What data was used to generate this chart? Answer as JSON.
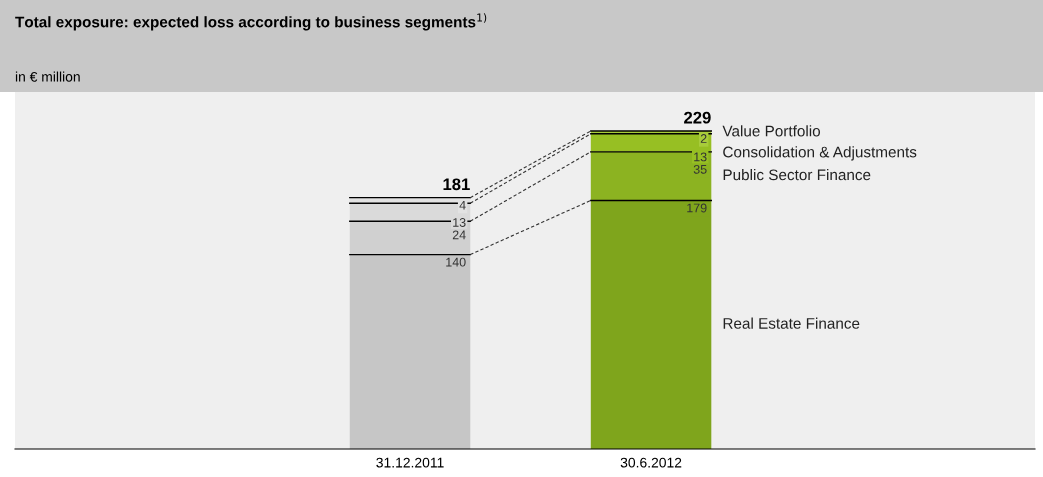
{
  "chart_data": {
    "type": "bar",
    "stacked": true,
    "data_labels": true,
    "title": "Total exposure: expected loss according to business segments$^{1)}$",
    "subtitle": "in € million",
    "categories": [
      "31.12.2011",
      "30.6.2012"
    ],
    "series": [
      {
        "name": "Real Estate Finance",
        "colors": [
          "#c6c6c6",
          "#7fa51c"
        ],
        "values": [
          140,
          179
        ]
      },
      {
        "name": "Public Sector Finance",
        "colors": [
          "#d0d0d0",
          "#8cb321"
        ],
        "values": [
          24,
          35
        ]
      },
      {
        "name": "Consolidation & Adjustments",
        "colors": [
          "#dadada",
          "#97bf23"
        ],
        "values": [
          13,
          13
        ]
      },
      {
        "name": "Value Portfolio",
        "colors": [
          "#e2e2e2",
          "#a8cc3b"
        ],
        "values": [
          4,
          2
        ]
      }
    ],
    "totals": [
      "181",
      "229"
    ],
    "legend": "right"
  }
}
